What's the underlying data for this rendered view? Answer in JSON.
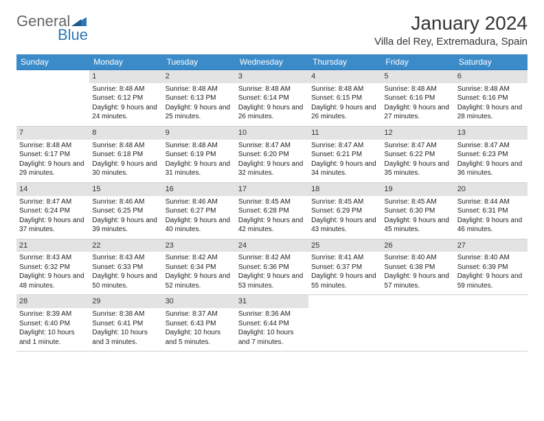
{
  "logo": {
    "line1": "General",
    "line2": "Blue",
    "color_general": "#666666",
    "color_blue": "#2a78b8",
    "triangle_color": "#2a78b8"
  },
  "header": {
    "month": "January 2024",
    "location": "Villa del Rey, Extremadura, Spain"
  },
  "colors": {
    "header_bg": "#3b8bc9",
    "header_text": "#ffffff",
    "daynum_bg": "#e3e3e3",
    "row_border_top": "#2a78b8",
    "text": "#222222"
  },
  "weekdays": [
    "Sunday",
    "Monday",
    "Tuesday",
    "Wednesday",
    "Thursday",
    "Friday",
    "Saturday"
  ],
  "weeks": [
    [
      {
        "day": "",
        "sunrise": "",
        "sunset": "",
        "daylight": ""
      },
      {
        "day": "1",
        "sunrise": "Sunrise: 8:48 AM",
        "sunset": "Sunset: 6:12 PM",
        "daylight": "Daylight: 9 hours and 24 minutes."
      },
      {
        "day": "2",
        "sunrise": "Sunrise: 8:48 AM",
        "sunset": "Sunset: 6:13 PM",
        "daylight": "Daylight: 9 hours and 25 minutes."
      },
      {
        "day": "3",
        "sunrise": "Sunrise: 8:48 AM",
        "sunset": "Sunset: 6:14 PM",
        "daylight": "Daylight: 9 hours and 26 minutes."
      },
      {
        "day": "4",
        "sunrise": "Sunrise: 8:48 AM",
        "sunset": "Sunset: 6:15 PM",
        "daylight": "Daylight: 9 hours and 26 minutes."
      },
      {
        "day": "5",
        "sunrise": "Sunrise: 8:48 AM",
        "sunset": "Sunset: 6:16 PM",
        "daylight": "Daylight: 9 hours and 27 minutes."
      },
      {
        "day": "6",
        "sunrise": "Sunrise: 8:48 AM",
        "sunset": "Sunset: 6:16 PM",
        "daylight": "Daylight: 9 hours and 28 minutes."
      }
    ],
    [
      {
        "day": "7",
        "sunrise": "Sunrise: 8:48 AM",
        "sunset": "Sunset: 6:17 PM",
        "daylight": "Daylight: 9 hours and 29 minutes."
      },
      {
        "day": "8",
        "sunrise": "Sunrise: 8:48 AM",
        "sunset": "Sunset: 6:18 PM",
        "daylight": "Daylight: 9 hours and 30 minutes."
      },
      {
        "day": "9",
        "sunrise": "Sunrise: 8:48 AM",
        "sunset": "Sunset: 6:19 PM",
        "daylight": "Daylight: 9 hours and 31 minutes."
      },
      {
        "day": "10",
        "sunrise": "Sunrise: 8:47 AM",
        "sunset": "Sunset: 6:20 PM",
        "daylight": "Daylight: 9 hours and 32 minutes."
      },
      {
        "day": "11",
        "sunrise": "Sunrise: 8:47 AM",
        "sunset": "Sunset: 6:21 PM",
        "daylight": "Daylight: 9 hours and 34 minutes."
      },
      {
        "day": "12",
        "sunrise": "Sunrise: 8:47 AM",
        "sunset": "Sunset: 6:22 PM",
        "daylight": "Daylight: 9 hours and 35 minutes."
      },
      {
        "day": "13",
        "sunrise": "Sunrise: 8:47 AM",
        "sunset": "Sunset: 6:23 PM",
        "daylight": "Daylight: 9 hours and 36 minutes."
      }
    ],
    [
      {
        "day": "14",
        "sunrise": "Sunrise: 8:47 AM",
        "sunset": "Sunset: 6:24 PM",
        "daylight": "Daylight: 9 hours and 37 minutes."
      },
      {
        "day": "15",
        "sunrise": "Sunrise: 8:46 AM",
        "sunset": "Sunset: 6:25 PM",
        "daylight": "Daylight: 9 hours and 39 minutes."
      },
      {
        "day": "16",
        "sunrise": "Sunrise: 8:46 AM",
        "sunset": "Sunset: 6:27 PM",
        "daylight": "Daylight: 9 hours and 40 minutes."
      },
      {
        "day": "17",
        "sunrise": "Sunrise: 8:45 AM",
        "sunset": "Sunset: 6:28 PM",
        "daylight": "Daylight: 9 hours and 42 minutes."
      },
      {
        "day": "18",
        "sunrise": "Sunrise: 8:45 AM",
        "sunset": "Sunset: 6:29 PM",
        "daylight": "Daylight: 9 hours and 43 minutes."
      },
      {
        "day": "19",
        "sunrise": "Sunrise: 8:45 AM",
        "sunset": "Sunset: 6:30 PM",
        "daylight": "Daylight: 9 hours and 45 minutes."
      },
      {
        "day": "20",
        "sunrise": "Sunrise: 8:44 AM",
        "sunset": "Sunset: 6:31 PM",
        "daylight": "Daylight: 9 hours and 46 minutes."
      }
    ],
    [
      {
        "day": "21",
        "sunrise": "Sunrise: 8:43 AM",
        "sunset": "Sunset: 6:32 PM",
        "daylight": "Daylight: 9 hours and 48 minutes."
      },
      {
        "day": "22",
        "sunrise": "Sunrise: 8:43 AM",
        "sunset": "Sunset: 6:33 PM",
        "daylight": "Daylight: 9 hours and 50 minutes."
      },
      {
        "day": "23",
        "sunrise": "Sunrise: 8:42 AM",
        "sunset": "Sunset: 6:34 PM",
        "daylight": "Daylight: 9 hours and 52 minutes."
      },
      {
        "day": "24",
        "sunrise": "Sunrise: 8:42 AM",
        "sunset": "Sunset: 6:36 PM",
        "daylight": "Daylight: 9 hours and 53 minutes."
      },
      {
        "day": "25",
        "sunrise": "Sunrise: 8:41 AM",
        "sunset": "Sunset: 6:37 PM",
        "daylight": "Daylight: 9 hours and 55 minutes."
      },
      {
        "day": "26",
        "sunrise": "Sunrise: 8:40 AM",
        "sunset": "Sunset: 6:38 PM",
        "daylight": "Daylight: 9 hours and 57 minutes."
      },
      {
        "day": "27",
        "sunrise": "Sunrise: 8:40 AM",
        "sunset": "Sunset: 6:39 PM",
        "daylight": "Daylight: 9 hours and 59 minutes."
      }
    ],
    [
      {
        "day": "28",
        "sunrise": "Sunrise: 8:39 AM",
        "sunset": "Sunset: 6:40 PM",
        "daylight": "Daylight: 10 hours and 1 minute."
      },
      {
        "day": "29",
        "sunrise": "Sunrise: 8:38 AM",
        "sunset": "Sunset: 6:41 PM",
        "daylight": "Daylight: 10 hours and 3 minutes."
      },
      {
        "day": "30",
        "sunrise": "Sunrise: 8:37 AM",
        "sunset": "Sunset: 6:43 PM",
        "daylight": "Daylight: 10 hours and 5 minutes."
      },
      {
        "day": "31",
        "sunrise": "Sunrise: 8:36 AM",
        "sunset": "Sunset: 6:44 PM",
        "daylight": "Daylight: 10 hours and 7 minutes."
      },
      {
        "day": "",
        "sunrise": "",
        "sunset": "",
        "daylight": ""
      },
      {
        "day": "",
        "sunrise": "",
        "sunset": "",
        "daylight": ""
      },
      {
        "day": "",
        "sunrise": "",
        "sunset": "",
        "daylight": ""
      }
    ]
  ]
}
